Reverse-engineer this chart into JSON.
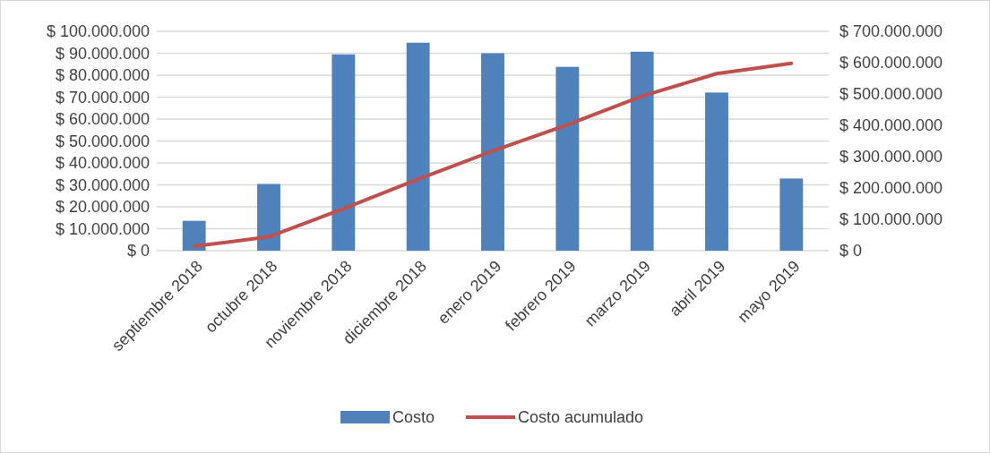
{
  "chart_data": {
    "type": "bar",
    "categories": [
      "septiembre 2018",
      "octubre 2018",
      "noviembre 2018",
      "diciembre 2018",
      "enero 2019",
      "febrero 2019",
      "marzo 2019",
      "abril 2019",
      "mayo 2019"
    ],
    "series": [
      {
        "name": "Costo",
        "color": "#4f81bd",
        "values": [
          13600000,
          30400000,
          89500000,
          94800000,
          90000000,
          83800000,
          90700000,
          72100000,
          32900000
        ]
      },
      {
        "name": "Costo acumulado",
        "type": "line",
        "axis": "y2",
        "color": "#c0504d",
        "values": [
          14000000,
          44000000,
          134000000,
          228000000,
          318000000,
          402000000,
          493000000,
          565000000,
          598000000
        ]
      }
    ],
    "ylim": [
      0,
      100000000
    ],
    "yticks": [
      {
        "value": 0,
        "label": "$ 0"
      },
      {
        "value": 10000000,
        "label": "$ 10.000.000"
      },
      {
        "value": 20000000,
        "label": "$ 20.000.000"
      },
      {
        "value": 30000000,
        "label": "$ 30.000.000"
      },
      {
        "value": 40000000,
        "label": "$ 40.000.000"
      },
      {
        "value": 50000000,
        "label": "$ 50.000.000"
      },
      {
        "value": 60000000,
        "label": "$ 60.000.000"
      },
      {
        "value": 70000000,
        "label": "$ 70.000.000"
      },
      {
        "value": 80000000,
        "label": "$ 80.000.000"
      },
      {
        "value": 90000000,
        "label": "$ 90.000.000"
      },
      {
        "value": 100000000,
        "label": "$ 100.000.000"
      }
    ],
    "y2lim": [
      0,
      700000000
    ],
    "y2ticks": [
      {
        "value": 0,
        "label": "$ 0"
      },
      {
        "value": 100000000,
        "label": "$ 100.000.000"
      },
      {
        "value": 200000000,
        "label": "$ 200.000.000"
      },
      {
        "value": 300000000,
        "label": "$ 300.000.000"
      },
      {
        "value": 400000000,
        "label": "$ 400.000.000"
      },
      {
        "value": 500000000,
        "label": "$ 500.000.000"
      },
      {
        "value": 600000000,
        "label": "$ 600.000.000"
      },
      {
        "value": 700000000,
        "label": "$ 700.000.000"
      }
    ],
    "grid": "y",
    "legend": "bottom",
    "marker": "none",
    "line_style": "solid"
  }
}
